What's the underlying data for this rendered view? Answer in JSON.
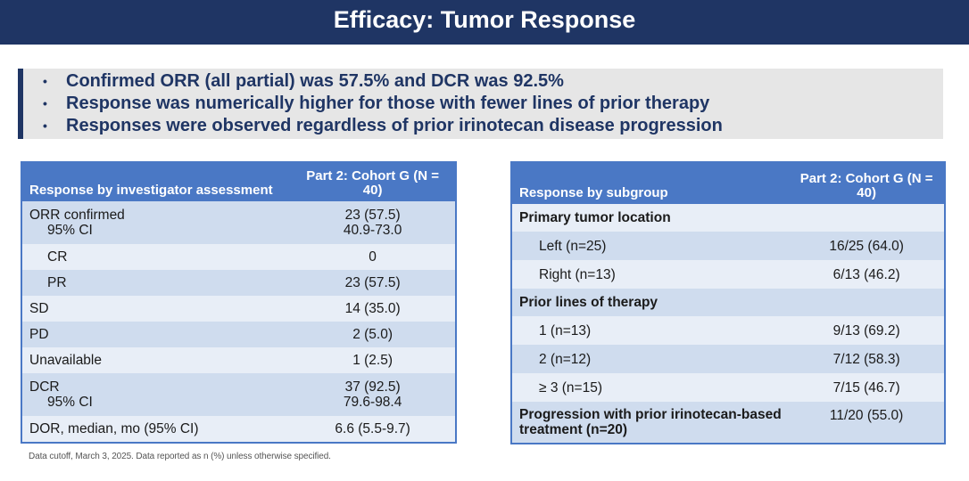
{
  "title": "Efficacy: Tumor Response",
  "bullets": [
    "Confirmed ORR (all partial) was 57.5% and DCR was 92.5%",
    "Response was numerically higher for those with fewer lines of prior therapy",
    "Responses were observed regardless of prior irinotecan disease progression"
  ],
  "left_table": {
    "header_col1": "Response by investigator assessment",
    "header_col2": "Part 2: Cohort G (N = 40)",
    "rows": [
      {
        "label": "ORR confirmed",
        "sublabel": "95% CI",
        "value": "23 (57.5)",
        "subvalue": "40.9-73.0"
      },
      {
        "label": "CR",
        "value": "0"
      },
      {
        "label": "PR",
        "value": "23 (57.5)"
      },
      {
        "label": "SD",
        "value": "14 (35.0)"
      },
      {
        "label": "PD",
        "value": "2 (5.0)"
      },
      {
        "label": "Unavailable",
        "value": "1 (2.5)"
      },
      {
        "label": "DCR",
        "sublabel": "95% CI",
        "value": "37 (92.5)",
        "subvalue": "79.6-98.4"
      },
      {
        "label": "DOR, median, mo (95% CI)",
        "value": "6.6 (5.5-9.7)"
      }
    ]
  },
  "right_table": {
    "header_col1": "Response by subgroup",
    "header_col2": "Part 2: Cohort G (N = 40)",
    "rows": [
      {
        "label": "Primary tumor location",
        "value": ""
      },
      {
        "label": "Left (n=25)",
        "value": "16/25 (64.0)"
      },
      {
        "label": "Right (n=13)",
        "value": "6/13 (46.2)"
      },
      {
        "label": "Prior lines of therapy",
        "value": ""
      },
      {
        "label": "1 (n=13)",
        "value": "9/13 (69.2)"
      },
      {
        "label": "2 (n=12)",
        "value": "7/12 (58.3)"
      },
      {
        "label": "≥ 3 (n=15)",
        "value": "7/15 (46.7)"
      },
      {
        "label": "Progression with prior irinotecan-based treatment (n=20)",
        "value": "11/20 (55.0)"
      }
    ]
  },
  "footnote": "Data cutoff, March 3, 2025. Data reported as n (%) unless otherwise specified."
}
